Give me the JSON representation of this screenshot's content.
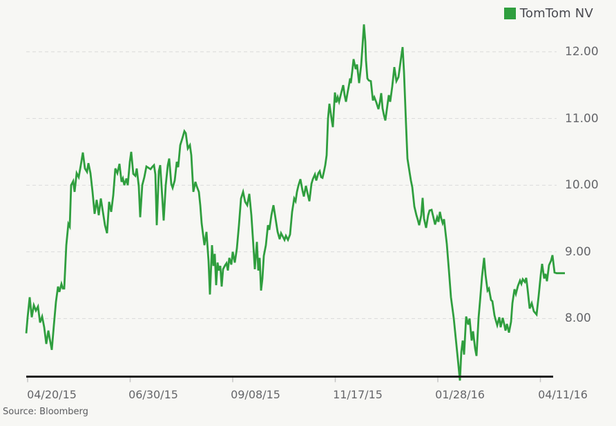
{
  "legend": {
    "series_label": "TomTom NV"
  },
  "source": {
    "label": "Source: Bloomberg"
  },
  "colors": {
    "background": "#f7f7f4",
    "series": "#2f9e3e",
    "grid": "#d9d9d9",
    "axis": "#1d1d1b",
    "tick": "#c4c4c4",
    "axis_label_text": "#646569",
    "legend_text": "#48494f",
    "source_text": "#5a5b5e"
  },
  "chart_data": {
    "type": "line",
    "title": "",
    "xlabel": "",
    "ylabel": "",
    "legend_position": "top-right",
    "grid": "horizontal-dashed",
    "x_tick_labels": [
      "04/20/15",
      "06/30/15",
      "09/08/15",
      "11/17/15",
      "01/28/16",
      "04/11/16"
    ],
    "y_tick_values": [
      12,
      11,
      10,
      9,
      8
    ],
    "y_tick_labels": [
      "12.00",
      "11.00",
      "10.00",
      "9.00",
      "8.00"
    ],
    "ylim": [
      7.0,
      12.5
    ],
    "x_note": "points are [time-position 38-818 across plot, price]; dates run 04/20/15 to 04/11/16",
    "series": [
      {
        "name": "TomTom NV",
        "color": "#2f9e3e",
        "points": [
          [
            38,
            7.78
          ],
          [
            40,
            8.02
          ],
          [
            43,
            8.32
          ],
          [
            46,
            8.02
          ],
          [
            49,
            8.2
          ],
          [
            52,
            8.12
          ],
          [
            55,
            8.18
          ],
          [
            58,
            7.94
          ],
          [
            61,
            8.03
          ],
          [
            64,
            7.87
          ],
          [
            67,
            7.62
          ],
          [
            70,
            7.82
          ],
          [
            72,
            7.7
          ],
          [
            75,
            7.53
          ],
          [
            78,
            7.9
          ],
          [
            81,
            8.25
          ],
          [
            84,
            8.48
          ],
          [
            86,
            8.4
          ],
          [
            89,
            8.52
          ],
          [
            91,
            8.45
          ],
          [
            93,
            8.45
          ],
          [
            96,
            9.1
          ],
          [
            99,
            9.42
          ],
          [
            101,
            9.38
          ],
          [
            103,
            10.0
          ],
          [
            106,
            10.06
          ],
          [
            108,
            9.9
          ],
          [
            111,
            10.18
          ],
          [
            114,
            10.12
          ],
          [
            117,
            10.3
          ],
          [
            120,
            10.49
          ],
          [
            123,
            10.25
          ],
          [
            126,
            10.2
          ],
          [
            128,
            10.33
          ],
          [
            131,
            10.18
          ],
          [
            134,
            9.9
          ],
          [
            137,
            9.57
          ],
          [
            140,
            9.78
          ],
          [
            143,
            9.55
          ],
          [
            146,
            9.8
          ],
          [
            149,
            9.6
          ],
          [
            152,
            9.4
          ],
          [
            155,
            9.28
          ],
          [
            158,
            9.75
          ],
          [
            161,
            9.6
          ],
          [
            164,
            9.85
          ],
          [
            167,
            10.25
          ],
          [
            170,
            10.18
          ],
          [
            173,
            10.32
          ],
          [
            176,
            10.05
          ],
          [
            178,
            10.1
          ],
          [
            180,
            10.0
          ],
          [
            183,
            10.1
          ],
          [
            185,
            10.0
          ],
          [
            188,
            10.35
          ],
          [
            190,
            10.5
          ],
          [
            193,
            10.17
          ],
          [
            196,
            10.14
          ],
          [
            198,
            10.25
          ],
          [
            201,
            9.98
          ],
          [
            203,
            9.52
          ],
          [
            206,
            10.0
          ],
          [
            209,
            10.12
          ],
          [
            212,
            10.28
          ],
          [
            215,
            10.26
          ],
          [
            218,
            10.24
          ],
          [
            221,
            10.28
          ],
          [
            223,
            10.3
          ],
          [
            225,
            10.16
          ],
          [
            227,
            9.4
          ],
          [
            230,
            10.21
          ],
          [
            232,
            10.3
          ],
          [
            235,
            9.81
          ],
          [
            237,
            9.47
          ],
          [
            240,
            10.0
          ],
          [
            243,
            10.3
          ],
          [
            245,
            10.4
          ],
          [
            248,
            10.02
          ],
          [
            250,
            9.96
          ],
          [
            253,
            10.07
          ],
          [
            256,
            10.35
          ],
          [
            258,
            10.27
          ],
          [
            261,
            10.6
          ],
          [
            264,
            10.7
          ],
          [
            267,
            10.81
          ],
          [
            269,
            10.78
          ],
          [
            272,
            10.55
          ],
          [
            275,
            10.6
          ],
          [
            277,
            10.45
          ],
          [
            280,
            9.9
          ],
          [
            283,
            10.05
          ],
          [
            285,
            9.98
          ],
          [
            288,
            9.9
          ],
          [
            290,
            9.7
          ],
          [
            292,
            9.43
          ],
          [
            296,
            9.1
          ],
          [
            299,
            9.3
          ],
          [
            302,
            8.86
          ],
          [
            304,
            8.36
          ],
          [
            307,
            9.1
          ],
          [
            309,
            8.79
          ],
          [
            311,
            8.97
          ],
          [
            313,
            8.5
          ],
          [
            315,
            8.84
          ],
          [
            317,
            8.72
          ],
          [
            319,
            8.79
          ],
          [
            321,
            8.48
          ],
          [
            323,
            8.74
          ],
          [
            326,
            8.8
          ],
          [
            328,
            8.83
          ],
          [
            330,
            8.72
          ],
          [
            332,
            8.91
          ],
          [
            335,
            8.81
          ],
          [
            337,
            9.0
          ],
          [
            340,
            8.84
          ],
          [
            343,
            9.05
          ],
          [
            346,
            9.4
          ],
          [
            349,
            9.8
          ],
          [
            352,
            9.9
          ],
          [
            355,
            9.75
          ],
          [
            358,
            9.7
          ],
          [
            361,
            9.87
          ],
          [
            364,
            9.55
          ],
          [
            367,
            9.08
          ],
          [
            369,
            8.74
          ],
          [
            372,
            9.15
          ],
          [
            374,
            8.72
          ],
          [
            376,
            8.91
          ],
          [
            378,
            8.42
          ],
          [
            380,
            8.6
          ],
          [
            382,
            8.94
          ],
          [
            385,
            9.1
          ],
          [
            388,
            9.4
          ],
          [
            390,
            9.33
          ],
          [
            393,
            9.55
          ],
          [
            396,
            9.7
          ],
          [
            399,
            9.5
          ],
          [
            402,
            9.3
          ],
          [
            405,
            9.19
          ],
          [
            407,
            9.28
          ],
          [
            410,
            9.22
          ],
          [
            412,
            9.18
          ],
          [
            414,
            9.24
          ],
          [
            417,
            9.18
          ],
          [
            420,
            9.26
          ],
          [
            423,
            9.6
          ],
          [
            426,
            9.8
          ],
          [
            428,
            9.76
          ],
          [
            430,
            9.9
          ],
          [
            432,
            9.99
          ],
          [
            435,
            10.09
          ],
          [
            438,
            9.92
          ],
          [
            440,
            9.83
          ],
          [
            443,
            9.99
          ],
          [
            446,
            9.85
          ],
          [
            448,
            9.76
          ],
          [
            451,
            10.02
          ],
          [
            453,
            10.09
          ],
          [
            456,
            10.16
          ],
          [
            458,
            10.07
          ],
          [
            461,
            10.18
          ],
          [
            463,
            10.21
          ],
          [
            465,
            10.12
          ],
          [
            467,
            10.11
          ],
          [
            469,
            10.2
          ],
          [
            471,
            10.3
          ],
          [
            473,
            10.45
          ],
          [
            475,
            11.0
          ],
          [
            477,
            11.22
          ],
          [
            480,
            11.0
          ],
          [
            482,
            10.87
          ],
          [
            485,
            11.39
          ],
          [
            487,
            11.24
          ],
          [
            489,
            11.32
          ],
          [
            491,
            11.25
          ],
          [
            494,
            11.38
          ],
          [
            497,
            11.5
          ],
          [
            499,
            11.35
          ],
          [
            501,
            11.25
          ],
          [
            503,
            11.37
          ],
          [
            505,
            11.48
          ],
          [
            507,
            11.6
          ],
          [
            508,
            11.53
          ],
          [
            510,
            11.7
          ],
          [
            512,
            11.89
          ],
          [
            515,
            11.74
          ],
          [
            517,
            11.81
          ],
          [
            520,
            11.53
          ],
          [
            523,
            11.8
          ],
          [
            525,
            12.1
          ],
          [
            527,
            12.41
          ],
          [
            529,
            12.15
          ],
          [
            530,
            11.87
          ],
          [
            532,
            11.6
          ],
          [
            534,
            11.57
          ],
          [
            537,
            11.56
          ],
          [
            540,
            11.27
          ],
          [
            542,
            11.32
          ],
          [
            545,
            11.24
          ],
          [
            548,
            11.14
          ],
          [
            550,
            11.24
          ],
          [
            552,
            11.38
          ],
          [
            554,
            11.15
          ],
          [
            556,
            11.05
          ],
          [
            558,
            10.97
          ],
          [
            561,
            11.2
          ],
          [
            563,
            11.35
          ],
          [
            565,
            11.25
          ],
          [
            568,
            11.48
          ],
          [
            571,
            11.77
          ],
          [
            574,
            11.56
          ],
          [
            577,
            11.62
          ],
          [
            580,
            11.85
          ],
          [
            583,
            12.07
          ],
          [
            585,
            11.7
          ],
          [
            588,
            10.9
          ],
          [
            590,
            10.4
          ],
          [
            593,
            10.2
          ],
          [
            595,
            10.07
          ],
          [
            597,
            9.97
          ],
          [
            600,
            9.68
          ],
          [
            603,
            9.55
          ],
          [
            605,
            9.48
          ],
          [
            607,
            9.4
          ],
          [
            610,
            9.55
          ],
          [
            612,
            9.81
          ],
          [
            614,
            9.5
          ],
          [
            617,
            9.36
          ],
          [
            620,
            9.55
          ],
          [
            622,
            9.62
          ],
          [
            625,
            9.63
          ],
          [
            628,
            9.5
          ],
          [
            630,
            9.41
          ],
          [
            633,
            9.52
          ],
          [
            635,
            9.45
          ],
          [
            637,
            9.6
          ],
          [
            639,
            9.5
          ],
          [
            641,
            9.43
          ],
          [
            643,
            9.49
          ],
          [
            645,
            9.3
          ],
          [
            647,
            9.12
          ],
          [
            650,
            8.73
          ],
          [
            653,
            8.32
          ],
          [
            657,
            8.01
          ],
          [
            660,
            7.7
          ],
          [
            663,
            7.39
          ],
          [
            666,
            7.07
          ],
          [
            668,
            7.5
          ],
          [
            670,
            7.67
          ],
          [
            672,
            7.46
          ],
          [
            675,
            8.03
          ],
          [
            678,
            7.91
          ],
          [
            680,
            8.0
          ],
          [
            683,
            7.67
          ],
          [
            685,
            7.81
          ],
          [
            688,
            7.55
          ],
          [
            690,
            7.44
          ],
          [
            693,
            8.01
          ],
          [
            695,
            8.25
          ],
          [
            698,
            8.63
          ],
          [
            701,
            8.91
          ],
          [
            703,
            8.66
          ],
          [
            706,
            8.42
          ],
          [
            708,
            8.45
          ],
          [
            711,
            8.28
          ],
          [
            713,
            8.26
          ],
          [
            716,
            8.05
          ],
          [
            718,
            7.97
          ],
          [
            720,
            7.9
          ],
          [
            723,
            8.02
          ],
          [
            725,
            7.87
          ],
          [
            728,
            8.01
          ],
          [
            730,
            7.92
          ],
          [
            732,
            7.82
          ],
          [
            734,
            7.92
          ],
          [
            737,
            7.79
          ],
          [
            740,
            7.95
          ],
          [
            742,
            8.23
          ],
          [
            745,
            8.44
          ],
          [
            747,
            8.37
          ],
          [
            750,
            8.49
          ],
          [
            753,
            8.57
          ],
          [
            755,
            8.52
          ],
          [
            757,
            8.59
          ],
          [
            760,
            8.55
          ],
          [
            762,
            8.61
          ],
          [
            764,
            8.44
          ],
          [
            767,
            8.15
          ],
          [
            770,
            8.23
          ],
          [
            773,
            8.11
          ],
          [
            777,
            8.06
          ],
          [
            780,
            8.34
          ],
          [
            783,
            8.65
          ],
          [
            785,
            8.82
          ],
          [
            788,
            8.6
          ],
          [
            790,
            8.67
          ],
          [
            792,
            8.56
          ],
          [
            795,
            8.8
          ],
          [
            798,
            8.87
          ],
          [
            800,
            8.95
          ],
          [
            803,
            8.69
          ],
          [
            806,
            8.68
          ],
          [
            810,
            8.68
          ],
          [
            814,
            8.68
          ],
          [
            818,
            8.68
          ]
        ]
      }
    ]
  }
}
